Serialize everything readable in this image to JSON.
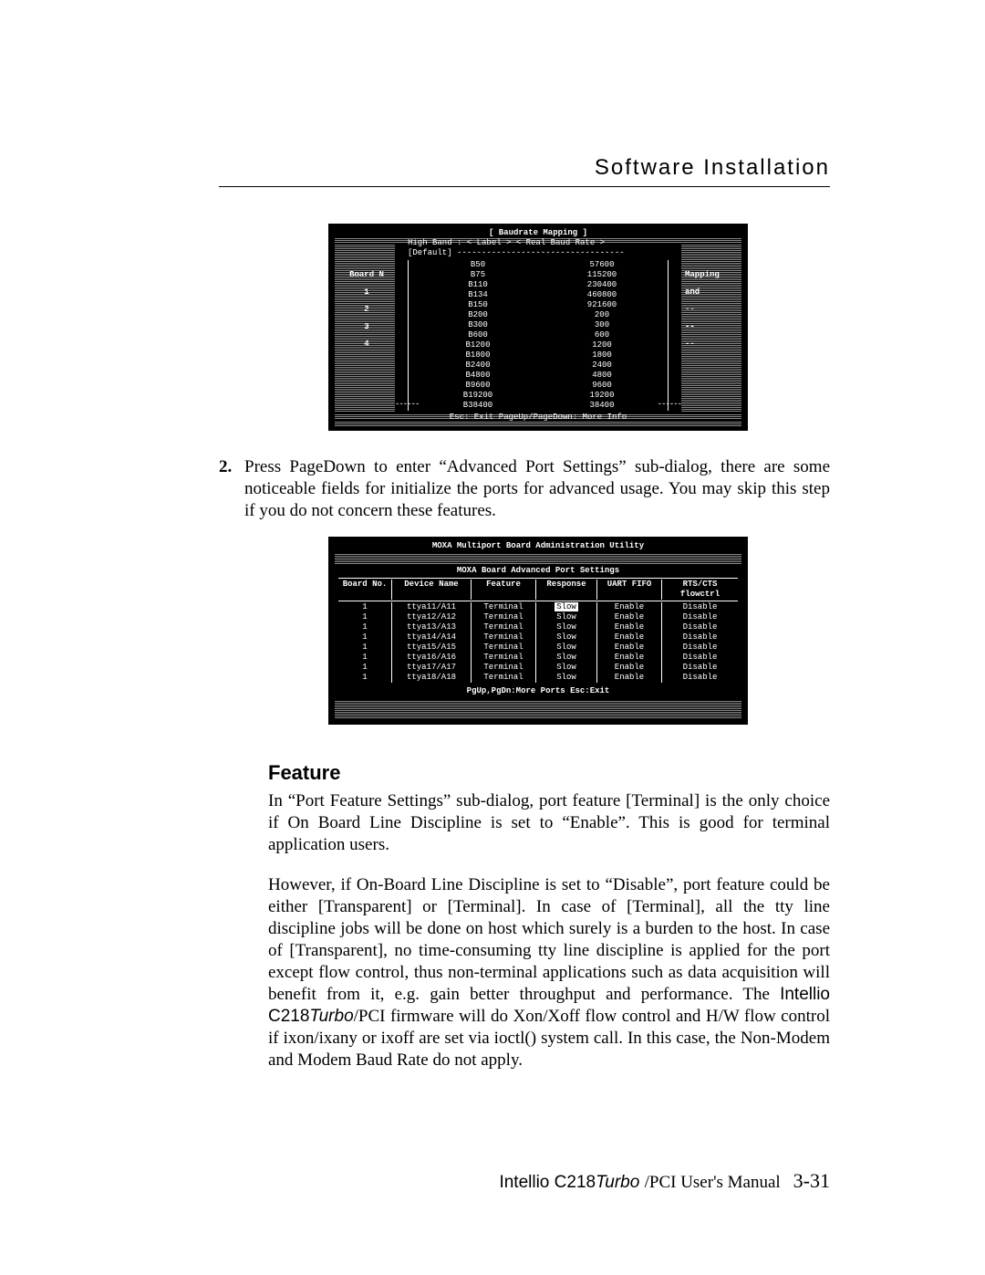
{
  "header": "Software Installation",
  "shot1": {
    "title": "[ Baudrate Mapping ]",
    "sub1": "High Band :  < Label >   < Real Baud Rate >",
    "sub2": "[Default]   ----------------------------------",
    "rows": [
      {
        "l": "B50",
        "r": "57600"
      },
      {
        "l": "B75",
        "r": "115200"
      },
      {
        "l": "B110",
        "r": "230400"
      },
      {
        "l": "B134",
        "r": "460800"
      },
      {
        "l": "B150",
        "r": "921600"
      },
      {
        "l": "B200",
        "r": "200"
      },
      {
        "l": "B300",
        "r": "300"
      },
      {
        "l": "B600",
        "r": "600"
      },
      {
        "l": "B1200",
        "r": "1200"
      },
      {
        "l": "B1800",
        "r": "1800"
      },
      {
        "l": "B2400",
        "r": "2400"
      },
      {
        "l": "B4800",
        "r": "4800"
      },
      {
        "l": "B9600",
        "r": "9600"
      },
      {
        "l": "B19200",
        "r": "19200"
      },
      {
        "l": "B38400",
        "r": "38400"
      }
    ],
    "left_header": "Board N",
    "left_items": [
      "1",
      "2",
      "3",
      "4"
    ],
    "right_header": "Mapping",
    "right_items": [
      "and",
      "--",
      "--",
      "--"
    ],
    "footer": "Esc: Exit   PageUp/PageDown: More Info"
  },
  "step2": {
    "num": "2.",
    "text": "Press PageDown to enter “Advanced Port Settings” sub-dialog, there are some noticeable fields for initialize the ports for advanced usage. You may skip this step if you do not concern these features."
  },
  "shot2": {
    "title": "MOXA Multiport Board Administration Utility",
    "subtitle": "MOXA Board Advanced Port Settings",
    "headers": [
      "Board No.",
      "Device Name",
      "Feature",
      "Response",
      "UART FIFO",
      "RTS/CTS flowctrl"
    ],
    "rows": [
      {
        "b": "1",
        "d": "ttya11/A11",
        "f": "Terminal",
        "r": "Slow",
        "u": "Enable",
        "c": "Disable",
        "sel": true
      },
      {
        "b": "1",
        "d": "ttya12/A12",
        "f": "Terminal",
        "r": "Slow",
        "u": "Enable",
        "c": "Disable"
      },
      {
        "b": "1",
        "d": "ttya13/A13",
        "f": "Terminal",
        "r": "Slow",
        "u": "Enable",
        "c": "Disable"
      },
      {
        "b": "1",
        "d": "ttya14/A14",
        "f": "Terminal",
        "r": "Slow",
        "u": "Enable",
        "c": "Disable"
      },
      {
        "b": "1",
        "d": "ttya15/A15",
        "f": "Terminal",
        "r": "Slow",
        "u": "Enable",
        "c": "Disable"
      },
      {
        "b": "1",
        "d": "ttya16/A16",
        "f": "Terminal",
        "r": "Slow",
        "u": "Enable",
        "c": "Disable"
      },
      {
        "b": "1",
        "d": "ttya17/A17",
        "f": "Terminal",
        "r": "Slow",
        "u": "Enable",
        "c": "Disable"
      },
      {
        "b": "1",
        "d": "ttya18/A18",
        "f": "Terminal",
        "r": "Slow",
        "u": "Enable",
        "c": "Disable"
      }
    ],
    "footer": "PgUp,PgDn:More Ports   Esc:Exit"
  },
  "feature": {
    "heading": "Feature",
    "p1": "In “Port Feature Settings” sub-dialog, port feature [Terminal] is the only choice if On Board Line Discipline is set to “Enable”. This is good for terminal application users.",
    "p2a": "However, if On-Board Line Discipline is set to “Disable”, port feature could be either [Transparent] or [Terminal]. In case of [Terminal], all the tty line discipline jobs will be done on host which surely is a burden to the host. In case of [Transparent], no time-consuming tty line discipline is applied for the port except flow control, thus non-terminal applications such as data acquisition will benefit from it, e.g. gain better throughput and performance. The ",
    "p2b": "Intellio C218",
    "p2c": "Turbo",
    "p2d": "/PCI firmware will do Xon/Xoff flow control and H/W flow control if ixon/ixany or ixoff are set via ioctl() system call. In this case, the Non-Modem and Modem Baud Rate do not apply."
  },
  "footer": {
    "a": "Intellio C218",
    "b": "Turbo ",
    "c": "/PCI User's Manual",
    "page": "3-31"
  }
}
